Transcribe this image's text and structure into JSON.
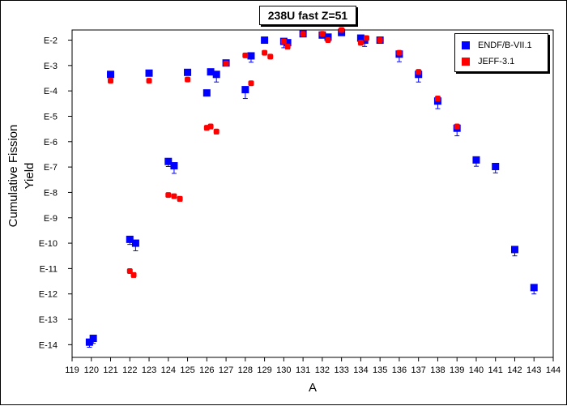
{
  "chart_data": {
    "type": "scatter",
    "title": "238U fast Z=51",
    "xlabel": "A",
    "ylabel": "Cumulative Fission Yield",
    "xlim": [
      119,
      144
    ],
    "ylim_exp": [
      -14.5,
      -1.6
    ],
    "xticks": [
      119,
      120,
      121,
      122,
      123,
      124,
      125,
      126,
      127,
      128,
      129,
      130,
      131,
      132,
      133,
      134,
      135,
      136,
      137,
      138,
      139,
      140,
      141,
      142,
      143,
      144
    ],
    "yticks": [
      {
        "exp": -2,
        "label": "E-2"
      },
      {
        "exp": -3,
        "label": "E-3"
      },
      {
        "exp": -4,
        "label": "E-4"
      },
      {
        "exp": -5,
        "label": "E-5"
      },
      {
        "exp": -6,
        "label": "E-6"
      },
      {
        "exp": -7,
        "label": "E-7"
      },
      {
        "exp": -8,
        "label": "E-8"
      },
      {
        "exp": -9,
        "label": "E-9"
      },
      {
        "exp": -10,
        "label": "E-10"
      },
      {
        "exp": -11,
        "label": "E-11"
      },
      {
        "exp": -12,
        "label": "E-12"
      },
      {
        "exp": -13,
        "label": "E-13"
      },
      {
        "exp": -14,
        "label": "E-14"
      }
    ],
    "legend_position": "top-right",
    "series": [
      {
        "name": "ENDF/B-VII.1",
        "color": "#0000ff",
        "marker": "square",
        "points": [
          {
            "x": 119.9,
            "exp": -13.9,
            "err": 0.2
          },
          {
            "x": 120.1,
            "exp": -13.75,
            "err": 0.2
          },
          {
            "x": 121,
            "exp": -3.35,
            "err": 0
          },
          {
            "x": 122,
            "exp": -9.85,
            "err": 0.2
          },
          {
            "x": 122.3,
            "exp": -10.0,
            "err": 0.3
          },
          {
            "x": 123,
            "exp": -3.3,
            "err": 0
          },
          {
            "x": 124,
            "exp": -6.78,
            "err": 0.2
          },
          {
            "x": 124.3,
            "exp": -6.95,
            "err": 0.3
          },
          {
            "x": 125,
            "exp": -3.27,
            "err": 0
          },
          {
            "x": 126,
            "exp": -4.08,
            "err": 0
          },
          {
            "x": 126.2,
            "exp": -3.25,
            "err": 0
          },
          {
            "x": 126.5,
            "exp": -3.35,
            "err": 0.3
          },
          {
            "x": 127,
            "exp": -2.9,
            "err": 0
          },
          {
            "x": 128,
            "exp": -3.95,
            "err": 0.35
          },
          {
            "x": 128.3,
            "exp": -2.62,
            "err": 0.25
          },
          {
            "x": 129,
            "exp": -2.0,
            "err": 0
          },
          {
            "x": 130,
            "exp": -2.05,
            "err": 0.25
          },
          {
            "x": 130.2,
            "exp": -2.1,
            "err": 0.2
          },
          {
            "x": 131,
            "exp": -1.75,
            "err": 0
          },
          {
            "x": 132,
            "exp": -1.8,
            "err": 0
          },
          {
            "x": 132.3,
            "exp": -1.88,
            "err": 0
          },
          {
            "x": 133,
            "exp": -1.7,
            "err": 0
          },
          {
            "x": 134,
            "exp": -1.92,
            "err": 0.2
          },
          {
            "x": 134.2,
            "exp": -2.0,
            "err": 0.25
          },
          {
            "x": 135,
            "exp": -2.0,
            "err": 0
          },
          {
            "x": 136,
            "exp": -2.55,
            "err": 0.3
          },
          {
            "x": 137,
            "exp": -3.35,
            "err": 0.3
          },
          {
            "x": 138,
            "exp": -4.4,
            "err": 0.3
          },
          {
            "x": 139,
            "exp": -5.47,
            "err": 0.3
          },
          {
            "x": 140,
            "exp": -6.72,
            "err": 0.25
          },
          {
            "x": 141,
            "exp": -6.98,
            "err": 0.25
          },
          {
            "x": 142,
            "exp": -10.25,
            "err": 0.25
          },
          {
            "x": 143,
            "exp": -11.75,
            "err": 0.25
          }
        ]
      },
      {
        "name": "JEFF-3.1",
        "color": "#ff0000",
        "marker": "circle",
        "points": [
          {
            "x": 121,
            "exp": -3.6,
            "err": 0
          },
          {
            "x": 122,
            "exp": -11.1,
            "err": 0
          },
          {
            "x": 122.2,
            "exp": -11.25,
            "err": 0.1
          },
          {
            "x": 123,
            "exp": -3.6,
            "err": 0
          },
          {
            "x": 124,
            "exp": -8.1,
            "err": 0
          },
          {
            "x": 124.3,
            "exp": -8.15,
            "err": 0
          },
          {
            "x": 124.6,
            "exp": -8.25,
            "err": 0.1
          },
          {
            "x": 125,
            "exp": -3.55,
            "err": 0
          },
          {
            "x": 126,
            "exp": -5.45,
            "err": 0.1
          },
          {
            "x": 126.2,
            "exp": -5.4,
            "err": 0.1
          },
          {
            "x": 126.5,
            "exp": -5.6,
            "err": 0.1
          },
          {
            "x": 127,
            "exp": -2.92,
            "err": 0
          },
          {
            "x": 128,
            "exp": -2.6,
            "err": 0
          },
          {
            "x": 128.3,
            "exp": -3.7,
            "err": 0
          },
          {
            "x": 129,
            "exp": -2.5,
            "err": 0
          },
          {
            "x": 129.3,
            "exp": -2.65,
            "err": 0
          },
          {
            "x": 130,
            "exp": -2.05,
            "err": 0
          },
          {
            "x": 130.2,
            "exp": -2.25,
            "err": 0.1
          },
          {
            "x": 131,
            "exp": -1.75,
            "err": 0
          },
          {
            "x": 132,
            "exp": -1.75,
            "err": 0
          },
          {
            "x": 132.3,
            "exp": -2.0,
            "err": 0
          },
          {
            "x": 133,
            "exp": -1.6,
            "err": 0
          },
          {
            "x": 134,
            "exp": -2.1,
            "err": 0.1
          },
          {
            "x": 134.3,
            "exp": -1.92,
            "err": 0
          },
          {
            "x": 135,
            "exp": -2.0,
            "err": 0
          },
          {
            "x": 136,
            "exp": -2.5,
            "err": 0
          },
          {
            "x": 137,
            "exp": -3.25,
            "err": 0.1
          },
          {
            "x": 138,
            "exp": -4.3,
            "err": 0.1
          },
          {
            "x": 139,
            "exp": -5.4,
            "err": 0.1
          }
        ]
      }
    ]
  }
}
